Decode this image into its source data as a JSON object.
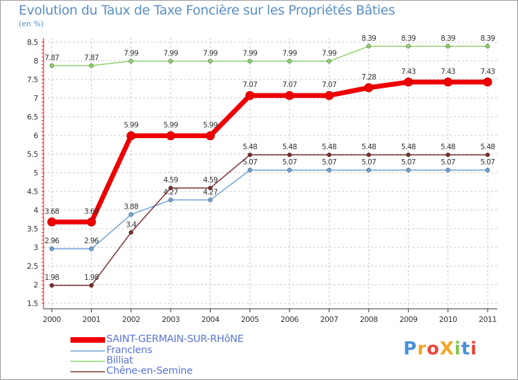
{
  "chart_data": {
    "type": "line",
    "title": "Evolution du Taux de Taxe Foncière sur les Propriétés Bâties",
    "ylabel": "(en %)",
    "xlabel": "",
    "categories": [
      "2000",
      "2001",
      "2002",
      "2003",
      "2004",
      "2005",
      "2006",
      "2007",
      "2008",
      "2009",
      "2010",
      "2011"
    ],
    "ylim": [
      1.5,
      8.5
    ],
    "yticks": [
      "1.5",
      "2",
      "2.5",
      "3",
      "3.5",
      "4",
      "4.5",
      "5",
      "5.5",
      "6",
      "6.5",
      "7",
      "7.5",
      "8",
      "8.5"
    ],
    "series": [
      {
        "name": "Billiat",
        "color": "#8fd16a",
        "values": [
          7.87,
          7.87,
          7.99,
          7.99,
          7.99,
          7.99,
          7.99,
          7.99,
          8.39,
          8.39,
          8.39,
          8.39
        ],
        "labels": [
          "7.87",
          "7.87",
          "7.99",
          "7.99",
          "7.99",
          "7.99",
          "7.99",
          "7.99",
          "8.39",
          "8.39",
          "8.39",
          "8.39"
        ]
      },
      {
        "name": "Franclens",
        "color": "#6fa3d6",
        "values": [
          2.96,
          2.96,
          3.88,
          4.27,
          4.27,
          5.07,
          5.07,
          5.07,
          5.07,
          5.07,
          5.07,
          5.07
        ],
        "labels": [
          "2.96",
          "2.96",
          "3.88",
          "4.27",
          "4.27",
          "5.07",
          "5.07",
          "5.07",
          "5.07",
          "5.07",
          "5.07",
          "5.07"
        ]
      },
      {
        "name": "Chêne-en-Semine",
        "color": "#7a2e2e",
        "values": [
          1.98,
          1.98,
          3.4,
          4.59,
          4.59,
          5.48,
          5.48,
          5.48,
          5.48,
          5.48,
          5.48,
          5.48
        ],
        "labels": [
          "1.98",
          "1.98",
          "3.4",
          "4.59",
          "4.59",
          "5.48",
          "5.48",
          "5.48",
          "5.48",
          "5.48",
          "5.48",
          "5.48"
        ]
      },
      {
        "name": "SAINT-GERMAIN-SUR-RHôNE",
        "color": "#ee0000",
        "values": [
          3.68,
          3.68,
          5.99,
          5.99,
          5.99,
          7.07,
          7.07,
          7.07,
          7.28,
          7.43,
          7.43,
          7.43
        ],
        "labels": [
          "3.68",
          "3.68",
          "5.99",
          "5.99",
          "5.99",
          "7.07",
          "7.07",
          "7.07",
          "7.28",
          "7.43",
          "7.43",
          "7.43"
        ]
      }
    ],
    "legend": [
      "SAINT-GERMAIN-SUR-RHôNE",
      "Franclens",
      "Billiat",
      "Chêne-en-Semine"
    ]
  },
  "logo": "ProXiti"
}
